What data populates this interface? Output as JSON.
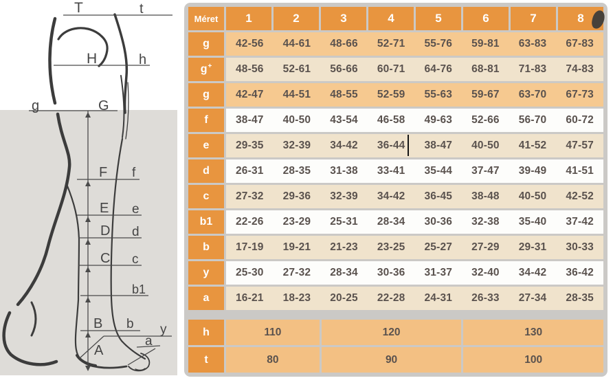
{
  "diagram": {
    "labels": {
      "T": "T",
      "t": "t",
      "H": "H",
      "h": "h",
      "g": "g",
      "G": "G",
      "F": "F",
      "f": "f",
      "E": "E",
      "e": "e",
      "D": "D",
      "d": "d",
      "C": "C",
      "c": "c",
      "b1": "b1",
      "B": "B",
      "b": "b",
      "y": "y",
      "A": "A",
      "a": "a"
    }
  },
  "table": {
    "header": {
      "size_label": "Méret",
      "columns": [
        "1",
        "2",
        "3",
        "4",
        "5",
        "6",
        "7",
        "8"
      ]
    },
    "rows": [
      {
        "label": "g",
        "sup": "",
        "tone": "tan",
        "values": [
          "42-56",
          "44-61",
          "48-66",
          "52-71",
          "55-76",
          "59-81",
          "63-83",
          "67-83"
        ]
      },
      {
        "label": "g",
        "sup": "+",
        "tone": "beige",
        "values": [
          "48-56",
          "52-61",
          "56-66",
          "60-71",
          "64-76",
          "68-81",
          "71-83",
          "74-83"
        ]
      },
      {
        "label": "g",
        "sup": "",
        "tone": "tan",
        "values": [
          "42-47",
          "44-51",
          "48-55",
          "52-59",
          "55-63",
          "59-67",
          "63-70",
          "67-73"
        ]
      },
      {
        "label": "f",
        "sup": "",
        "tone": "whiterow",
        "values": [
          "38-47",
          "40-50",
          "43-54",
          "46-58",
          "49-63",
          "52-66",
          "56-70",
          "60-72"
        ]
      },
      {
        "label": "e",
        "sup": "",
        "tone": "beige",
        "values": [
          "29-35",
          "32-39",
          "34-42",
          "36-44",
          "38-47",
          "40-50",
          "41-52",
          "47-57"
        ]
      },
      {
        "label": "d",
        "sup": "",
        "tone": "whiterow",
        "values": [
          "26-31",
          "28-35",
          "31-38",
          "33-41",
          "35-44",
          "37-47",
          "39-49",
          "41-51"
        ]
      },
      {
        "label": "c",
        "sup": "",
        "tone": "beige",
        "values": [
          "27-32",
          "29-36",
          "32-39",
          "34-42",
          "36-45",
          "38-48",
          "40-50",
          "42-52"
        ]
      },
      {
        "label": "b1",
        "sup": "",
        "tone": "whiterow",
        "values": [
          "22-26",
          "23-29",
          "25-31",
          "28-34",
          "30-36",
          "32-38",
          "35-40",
          "37-42"
        ]
      },
      {
        "label": "b",
        "sup": "",
        "tone": "beige",
        "values": [
          "17-19",
          "19-21",
          "21-23",
          "23-25",
          "25-27",
          "27-29",
          "29-31",
          "30-33"
        ]
      },
      {
        "label": "y",
        "sup": "",
        "tone": "whiterow",
        "values": [
          "25-30",
          "27-32",
          "28-34",
          "30-36",
          "31-37",
          "32-40",
          "34-42",
          "36-42"
        ]
      },
      {
        "label": "a",
        "sup": "",
        "tone": "beige",
        "values": [
          "16-21",
          "18-23",
          "20-25",
          "22-28",
          "24-31",
          "26-33",
          "27-34",
          "28-35"
        ]
      }
    ],
    "merged_rows": [
      {
        "label": "h",
        "cells": [
          {
            "value": "110",
            "span": 2
          },
          {
            "value": "120",
            "span": 3
          },
          {
            "value": "130",
            "span": 3
          }
        ]
      },
      {
        "label": "t",
        "cells": [
          {
            "value": "80",
            "span": 2
          },
          {
            "value": "90",
            "span": 3
          },
          {
            "value": "100",
            "span": 3
          }
        ]
      }
    ]
  },
  "colors": {
    "orange": "#E8953F",
    "tan": "#F6C990",
    "beige": "#F0E3CC",
    "whiterow": "#FDFDFB",
    "mtan": "#F3C083",
    "frame": "#CBC9C6",
    "panel": "#DEDCD8",
    "ink": "#5A524E",
    "line": "#4A4A4A"
  }
}
